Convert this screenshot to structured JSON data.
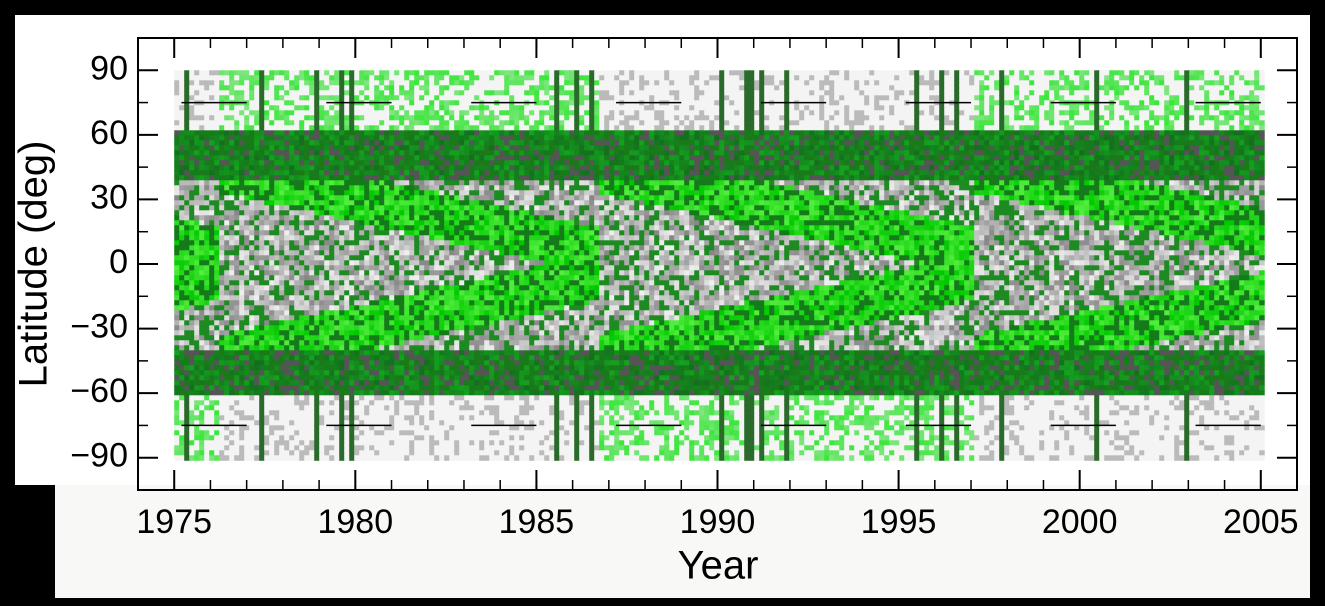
{
  "chart_data": {
    "type": "heatmap",
    "xlabel": "Year",
    "ylabel": "Latitude (deg)",
    "xlim": [
      1974,
      2006
    ],
    "xticks": [
      1975,
      1980,
      1985,
      1990,
      1995,
      2000,
      2005
    ],
    "ylim": [
      -105,
      105
    ],
    "yticks": [
      {
        "value": -90,
        "label": "−90"
      },
      {
        "value": -60,
        "label": "−60"
      },
      {
        "value": -30,
        "label": "−30"
      },
      0,
      30,
      60,
      90
    ]
  }
}
